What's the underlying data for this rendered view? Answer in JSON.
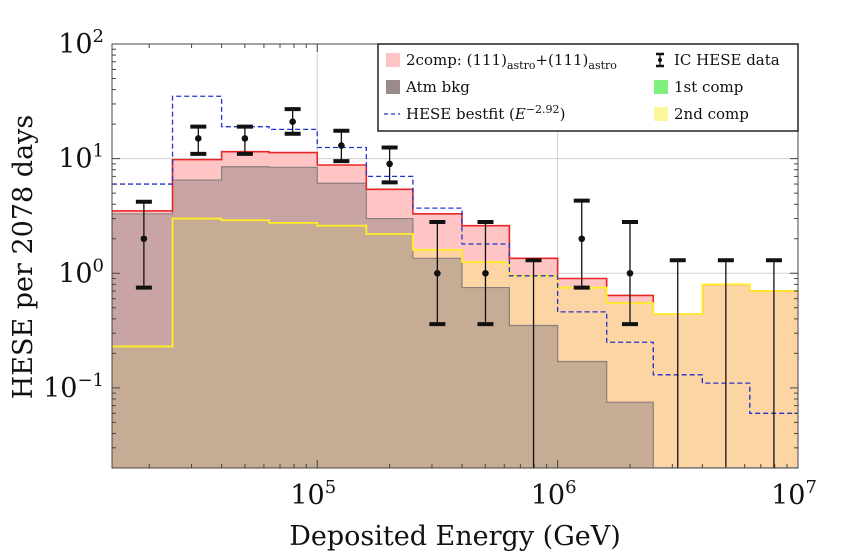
{
  "chart_data": {
    "type": "area",
    "title": "",
    "xlabel": "Deposited Energy (GeV)",
    "ylabel": "HESE per 2078 days",
    "xscale": "log",
    "yscale": "log",
    "xlim": [
      14000,
      10000000
    ],
    "ylim": [
      0.02,
      100
    ],
    "grid": true,
    "legend_position": "top-right",
    "x_ticks": [
      {
        "value": 100000,
        "base": "10",
        "exp": "5"
      },
      {
        "value": 1000000,
        "base": "10",
        "exp": "6"
      },
      {
        "value": 10000000,
        "base": "10",
        "exp": "7"
      }
    ],
    "y_ticks": [
      {
        "value": 0.1,
        "base": "10",
        "exp": "−1"
      },
      {
        "value": 1,
        "base": "10",
        "exp": "0"
      },
      {
        "value": 10,
        "base": "10",
        "exp": "1"
      },
      {
        "value": 100,
        "base": "10",
        "exp": "2"
      }
    ],
    "bin_edges": [
      14000,
      25000,
      40000,
      63000,
      100000,
      160000,
      250000,
      400000,
      630000,
      1000000,
      1600000,
      2500000,
      4000000,
      6300000,
      10000000
    ],
    "series": [
      {
        "name": "2comp: (111)_astro+(111)_astro",
        "label_main": "2comp: (111)",
        "label_sub1": "astro",
        "label_mid": "+(111)",
        "label_sub2": "astro",
        "style": "filled-step",
        "fill": "#ffc4c4",
        "stroke": "#e8262a",
        "values": [
          3.5,
          9.8,
          11.5,
          11.3,
          8.8,
          5.4,
          3.3,
          2.6,
          1.35,
          0.9,
          0.64,
          0.44,
          0.8,
          0.7
        ]
      },
      {
        "name": "Atm bkg",
        "style": "filled-step",
        "fill": "#9a8a8a",
        "stroke": "#8a7e7e",
        "values": [
          3.3,
          6.5,
          8.5,
          8.4,
          6.1,
          3.0,
          1.35,
          0.75,
          0.35,
          0.17,
          0.075,
          0.02,
          0.02,
          0.02
        ]
      },
      {
        "name": "HESE bestfit",
        "label_main": "HESE bestfit (",
        "label_E": "E",
        "label_exp": "−2.92",
        "label_close": ")",
        "style": "dashed-step",
        "stroke": "#2233cc",
        "values": [
          6.0,
          35.0,
          19.0,
          18.0,
          12.5,
          7.0,
          3.7,
          1.8,
          0.95,
          0.46,
          0.25,
          0.13,
          0.11,
          0.06
        ]
      },
      {
        "name": "1st comp",
        "style": "filled-step",
        "fill": "#7ff07f",
        "stroke": "#44cc44",
        "values": []
      },
      {
        "name": "2nd comp",
        "style": "filled-step",
        "fill": "#fdd6a0",
        "stroke": "#ffee22",
        "values": [
          0.23,
          3.0,
          2.9,
          2.75,
          2.6,
          2.2,
          1.6,
          1.25,
          0.95,
          0.75,
          0.55,
          0.44,
          0.8,
          0.7
        ]
      },
      {
        "name": "IC HESE data",
        "style": "errorbar",
        "stroke": "#111111",
        "points": [
          {
            "x": 19000,
            "y": 2,
            "lo": 0.75,
            "hi": 4.2
          },
          {
            "x": 32000,
            "y": 15,
            "lo": 11,
            "hi": 19
          },
          {
            "x": 50000,
            "y": 15,
            "lo": 11,
            "hi": 19
          },
          {
            "x": 79000,
            "y": 21,
            "lo": 16.5,
            "hi": 27
          },
          {
            "x": 126000,
            "y": 13,
            "lo": 9.5,
            "hi": 17.5
          },
          {
            "x": 200000,
            "y": 9,
            "lo": 6.2,
            "hi": 12.5
          },
          {
            "x": 316000,
            "y": 1,
            "lo": 0.36,
            "hi": 2.8
          },
          {
            "x": 501000,
            "y": 1,
            "lo": 0.36,
            "hi": 2.8
          },
          {
            "x": 794000,
            "y": null,
            "lo": 0.02,
            "hi": 1.3
          },
          {
            "x": 1260000,
            "y": 2,
            "lo": 0.75,
            "hi": 4.3
          },
          {
            "x": 2000000,
            "y": 1,
            "lo": 0.36,
            "hi": 2.8
          },
          {
            "x": 3160000,
            "y": null,
            "lo": 0.02,
            "hi": 1.3
          },
          {
            "x": 5010000,
            "y": null,
            "lo": 0.02,
            "hi": 1.3
          },
          {
            "x": 7940000,
            "y": null,
            "lo": 0.02,
            "hi": 1.3
          }
        ]
      }
    ]
  }
}
